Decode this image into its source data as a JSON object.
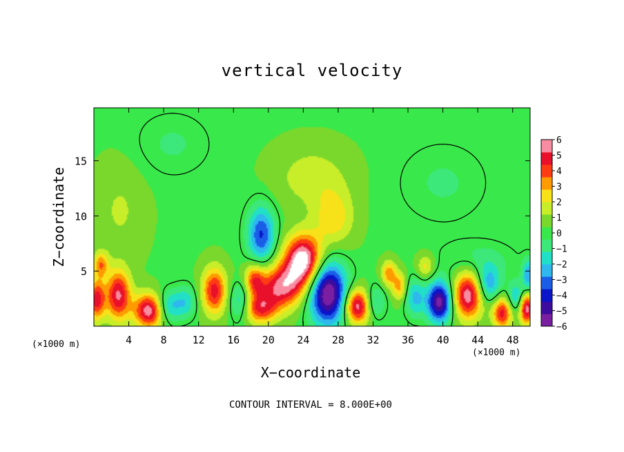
{
  "chart_data": {
    "type": "heatmap",
    "title": "vertical velocity",
    "xlabel": "X−coordinate",
    "ylabel": "Z−coordinate",
    "x_unit_left": "(×1000 m)",
    "x_unit_right": "(×1000 m)",
    "footer": "CONTOUR INTERVAL = 8.000E+00",
    "xlim": [
      0,
      50
    ],
    "ylim": [
      0,
      19.8
    ],
    "x_ticks": [
      4,
      8,
      12,
      16,
      20,
      24,
      28,
      32,
      36,
      40,
      44,
      48
    ],
    "y_ticks": [
      5,
      10,
      15
    ],
    "colorbar": {
      "range": [
        -6,
        6
      ],
      "ticks": [
        6,
        5,
        4,
        3,
        2,
        1,
        0,
        -1,
        -2,
        -3,
        -4,
        -5,
        -6
      ],
      "tick_labels": [
        "6",
        "5",
        "4",
        "3",
        "2",
        "1",
        "0",
        "−1",
        "−2",
        "−3",
        "−4",
        "−5",
        "−6"
      ],
      "colors": [
        "#7a1fa2",
        "#3b0c9e",
        "#0a14c8",
        "#1a5ee8",
        "#2eb8ee",
        "#22e0c8",
        "#3de87a",
        "#39e84a",
        "#7ad82c",
        "#c8ee2a",
        "#f7e21a",
        "#ff9a00",
        "#ff3c14",
        "#e8102a",
        "#f88ca0"
      ]
    },
    "background_value": 0.3,
    "features": [
      {
        "x": 0.3,
        "z": 2.4,
        "w": 4.5,
        "sx": 0.7,
        "sz": 1.3
      },
      {
        "x": 0.8,
        "z": 5.6,
        "w": 3.0,
        "sx": 0.6,
        "sz": 0.8
      },
      {
        "x": 2.8,
        "z": 2.8,
        "w": 5.0,
        "sx": 1.0,
        "sz": 1.6
      },
      {
        "x": 6.3,
        "z": 1.4,
        "w": 5.5,
        "sx": 1.2,
        "sz": 1.1
      },
      {
        "x": 8.5,
        "z": 1.8,
        "w": -2.5,
        "sx": 1.0,
        "sz": 1.0
      },
      {
        "x": 10.5,
        "z": 2.2,
        "w": -2.0,
        "sx": 0.9,
        "sz": 1.0
      },
      {
        "x": 13.8,
        "z": 3.2,
        "w": 4.5,
        "sx": 1.0,
        "sz": 1.5
      },
      {
        "x": 16.8,
        "z": 2.2,
        "w": -2.5,
        "sx": 0.9,
        "sz": 1.2
      },
      {
        "x": 18.4,
        "z": 4.2,
        "w": 3.5,
        "sx": 0.8,
        "sz": 1.0
      },
      {
        "x": 19.2,
        "z": 8.3,
        "w": -4.0,
        "sx": 1.1,
        "sz": 1.8
      },
      {
        "x": 24.0,
        "z": 6.0,
        "w": 6.5,
        "sx": 1.5,
        "sz": 1.6
      },
      {
        "x": 21.5,
        "z": 3.6,
        "w": 5.0,
        "sx": 1.8,
        "sz": 1.4
      },
      {
        "x": 19.0,
        "z": 1.6,
        "w": 4.0,
        "sx": 1.4,
        "sz": 1.0
      },
      {
        "x": 26.8,
        "z": 3.0,
        "w": -6.5,
        "sx": 1.5,
        "sz": 2.0
      },
      {
        "x": 27.5,
        "z": 9.8,
        "w": 2.2,
        "sx": 1.6,
        "sz": 1.8
      },
      {
        "x": 25.0,
        "z": 13.5,
        "w": 1.4,
        "sx": 3.0,
        "sz": 2.0
      },
      {
        "x": 30.2,
        "z": 1.8,
        "w": 5.5,
        "sx": 1.0,
        "sz": 1.1
      },
      {
        "x": 32.2,
        "z": 2.2,
        "w": -2.0,
        "sx": 0.8,
        "sz": 1.0
      },
      {
        "x": 33.8,
        "z": 4.8,
        "w": 3.0,
        "sx": 0.6,
        "sz": 0.8
      },
      {
        "x": 35.0,
        "z": 3.6,
        "w": 2.8,
        "sx": 0.6,
        "sz": 0.9
      },
      {
        "x": 36.8,
        "z": 2.6,
        "w": -2.5,
        "sx": 0.8,
        "sz": 1.2
      },
      {
        "x": 39.6,
        "z": 2.2,
        "w": -6.0,
        "sx": 1.0,
        "sz": 1.3
      },
      {
        "x": 38.0,
        "z": 5.4,
        "w": 2.0,
        "sx": 0.7,
        "sz": 0.8
      },
      {
        "x": 42.9,
        "z": 2.8,
        "w": 5.5,
        "sx": 1.2,
        "sz": 1.5
      },
      {
        "x": 45.2,
        "z": 3.8,
        "w": -3.0,
        "sx": 1.0,
        "sz": 1.2
      },
      {
        "x": 46.8,
        "z": 1.2,
        "w": 4.5,
        "sx": 0.8,
        "sz": 1.0
      },
      {
        "x": 48.4,
        "z": 2.6,
        "w": -2.5,
        "sx": 0.7,
        "sz": 1.0
      },
      {
        "x": 49.6,
        "z": 1.6,
        "w": 5.5,
        "sx": 0.6,
        "sz": 1.0
      },
      {
        "x": 49.8,
        "z": 4.6,
        "w": -3.0,
        "sx": 0.5,
        "sz": 1.0
      },
      {
        "x": 3.0,
        "z": 10.5,
        "w": 1.0,
        "sx": 2.0,
        "sz": 3.0
      },
      {
        "x": 9.0,
        "z": 16.5,
        "w": -0.8,
        "sx": 3.0,
        "sz": 2.0
      },
      {
        "x": 40.0,
        "z": 13.0,
        "w": -0.8,
        "sx": 3.5,
        "sz": 2.5
      },
      {
        "x": 44.0,
        "z": 6.0,
        "w": -1.0,
        "sx": 3.0,
        "sz": 1.2
      }
    ]
  }
}
